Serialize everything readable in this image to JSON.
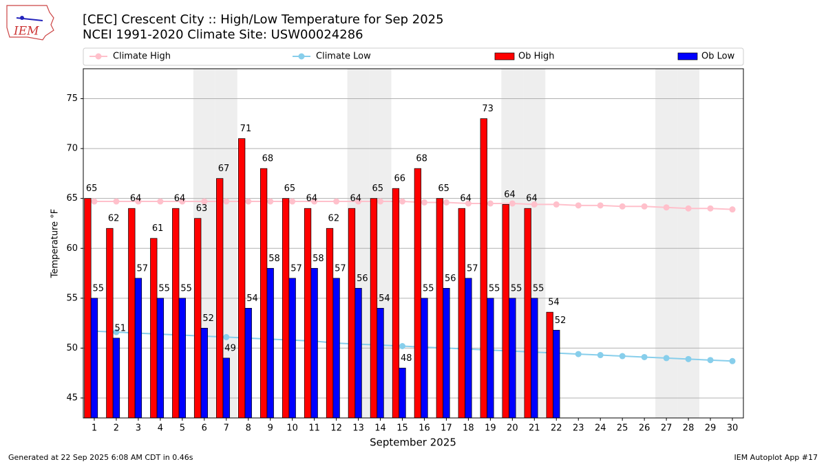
{
  "chart_data": {
    "type": "bar",
    "title": "[CEC] Crescent City :: High/Low Temperature for Sep 2025",
    "subtitle": "NCEI 1991-2020 Climate Site: USW00024286",
    "xlabel": "September 2025",
    "ylabel": "Temperature °F",
    "logo_text": "IEM",
    "footer_left": "Generated at 22 Sep 2025 6:08 AM CDT in 0.46s",
    "footer_right": "IEM Autoplot App #17",
    "x": [
      1,
      2,
      3,
      4,
      5,
      6,
      7,
      8,
      9,
      10,
      11,
      12,
      13,
      14,
      15,
      16,
      17,
      18,
      19,
      20,
      21,
      22,
      23,
      24,
      25,
      26,
      27,
      28,
      29,
      30
    ],
    "xlim": [
      0.5,
      30.5
    ],
    "xticks": [
      1,
      2,
      3,
      4,
      5,
      6,
      7,
      8,
      9,
      10,
      11,
      12,
      13,
      14,
      15,
      16,
      17,
      18,
      19,
      20,
      21,
      22,
      23,
      24,
      25,
      26,
      27,
      28,
      29,
      30
    ],
    "ylim": [
      43,
      78
    ],
    "yticks": [
      45,
      50,
      55,
      60,
      65,
      70,
      75
    ],
    "grid": true,
    "shaded_days": [
      6,
      7,
      13,
      14,
      20,
      21,
      27,
      28
    ],
    "legend": "top",
    "series": [
      {
        "name": "Climate High",
        "type": "line",
        "color": "#ffc0cb",
        "values": [
          64.7,
          64.7,
          64.7,
          64.7,
          64.7,
          64.7,
          64.7,
          64.7,
          64.7,
          64.7,
          64.7,
          64.7,
          64.7,
          64.7,
          64.7,
          64.6,
          64.6,
          64.5,
          64.5,
          64.5,
          64.4,
          64.4,
          64.3,
          64.3,
          64.2,
          64.2,
          64.1,
          64.0,
          64.0,
          63.9
        ]
      },
      {
        "name": "Climate Low",
        "type": "line",
        "color": "#87ceeb",
        "values": [
          51.7,
          51.6,
          51.5,
          51.4,
          51.3,
          51.2,
          51.1,
          51.0,
          50.9,
          50.8,
          50.7,
          50.5,
          50.4,
          50.3,
          50.2,
          50.1,
          50.0,
          49.9,
          49.8,
          49.7,
          49.6,
          49.5,
          49.4,
          49.3,
          49.2,
          49.1,
          49.0,
          48.9,
          48.8,
          48.7
        ]
      },
      {
        "name": "Ob High",
        "type": "bar",
        "color": "#ff0000",
        "values": [
          65,
          62,
          64,
          61,
          64,
          63,
          67,
          71,
          68,
          65,
          64,
          62,
          64,
          65,
          66,
          68,
          65,
          64,
          73,
          64.4,
          64,
          53.6,
          null,
          null,
          null,
          null,
          null,
          null,
          null,
          null
        ],
        "value_labels": [
          "65",
          "62",
          "64",
          "61",
          "64",
          "63",
          "67",
          "71",
          "68",
          "65",
          "64",
          "62",
          "64",
          "65",
          "66",
          "68",
          "65",
          "64",
          "73",
          "64",
          "64",
          "54",
          null,
          null,
          null,
          null,
          null,
          null,
          null,
          null
        ]
      },
      {
        "name": "Ob Low",
        "type": "bar",
        "color": "#0000ff",
        "values": [
          55,
          51,
          57,
          55,
          55,
          52,
          49,
          54,
          58,
          57,
          58,
          57,
          56,
          54,
          48,
          55,
          56,
          57,
          55,
          55,
          55,
          51.8,
          null,
          null,
          null,
          null,
          null,
          null,
          null,
          null
        ],
        "value_labels": [
          "55",
          "51",
          "57",
          "55",
          "55",
          "52",
          "49",
          "54",
          "58",
          "57",
          "58",
          "57",
          "56",
          "54",
          "48",
          "55",
          "56",
          "57",
          "55",
          "55",
          "55",
          "52",
          null,
          null,
          null,
          null,
          null,
          null,
          null,
          null
        ]
      }
    ]
  }
}
